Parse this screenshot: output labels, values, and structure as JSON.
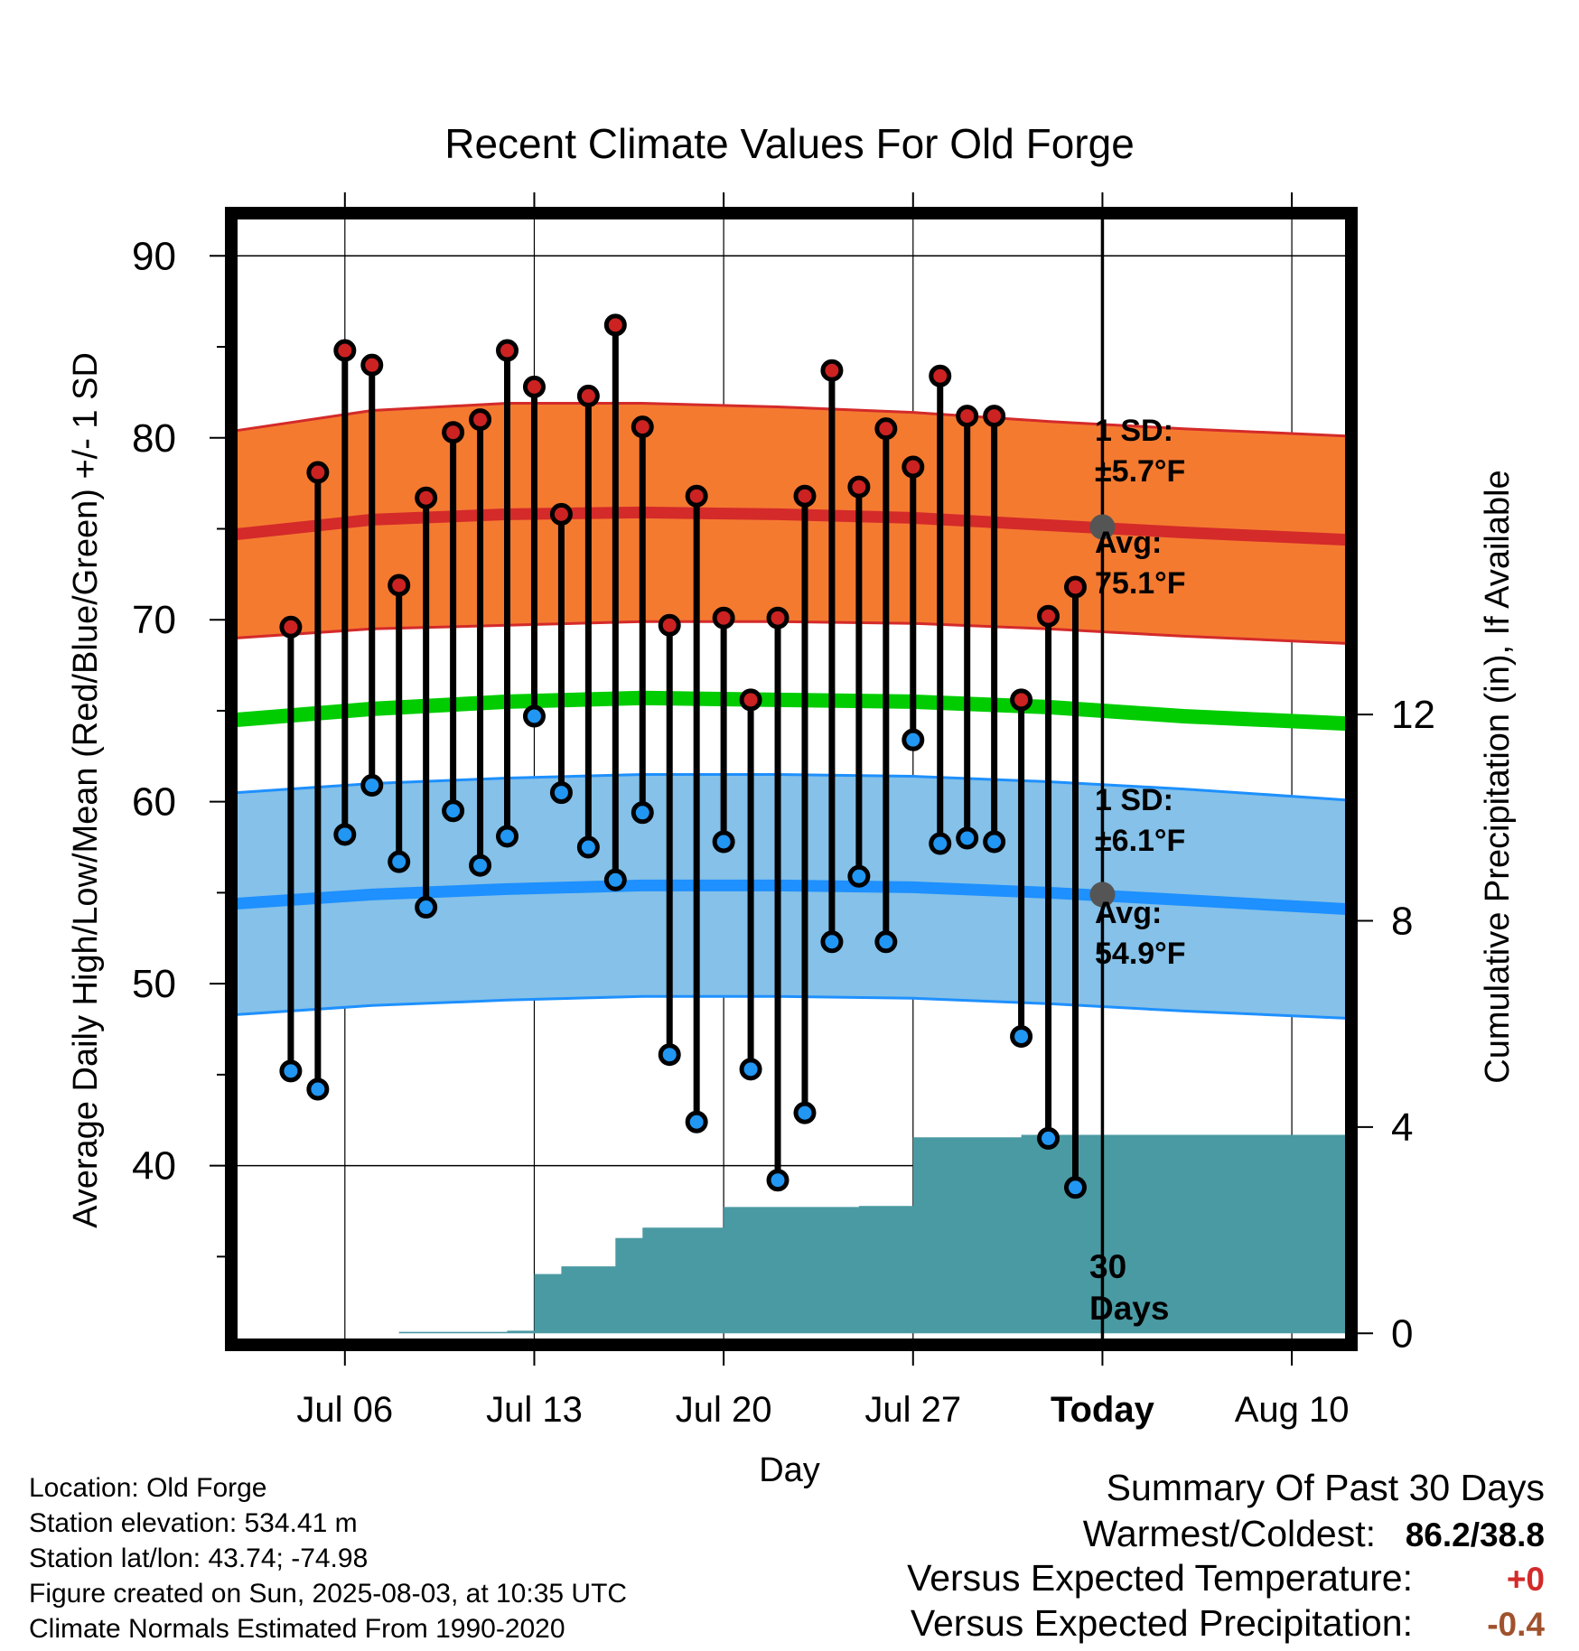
{
  "chart_data": {
    "type": "line",
    "title": "Recent Climate Values For Old Forge",
    "xlabel": "Day",
    "ylabel": "Average Daily High/Low/Mean (Red/Blue/Green) +/- 1 SD",
    "y2label": "Cumulative Precipitation (in), If Available",
    "ylim": [
      30.5,
      92
    ],
    "y2lim": [
      -0.1,
      21.6
    ],
    "x_tick_labels": [
      "Jul 06",
      "Jul 13",
      "Jul 20",
      "Jul 27",
      "Today",
      "Aug 10"
    ],
    "x_tick_dates": [
      "2025-07-06",
      "2025-07-13",
      "2025-07-20",
      "2025-07-27",
      "2025-08-03",
      "2025-08-10"
    ],
    "xlim": [
      "2025-07-02",
      "2025-08-12"
    ],
    "y_ticks": [
      40,
      50,
      60,
      70,
      80,
      90
    ],
    "y2_ticks": [
      0,
      4,
      8,
      12
    ],
    "today": "2025-08-03",
    "today_label_line1": "30",
    "today_label_line2": "Days",
    "daily": {
      "dates": [
        "2025-07-04",
        "2025-07-05",
        "2025-07-06",
        "2025-07-07",
        "2025-07-08",
        "2025-07-09",
        "2025-07-10",
        "2025-07-11",
        "2025-07-12",
        "2025-07-13",
        "2025-07-14",
        "2025-07-15",
        "2025-07-16",
        "2025-07-17",
        "2025-07-18",
        "2025-07-19",
        "2025-07-20",
        "2025-07-21",
        "2025-07-22",
        "2025-07-23",
        "2025-07-24",
        "2025-07-25",
        "2025-07-26",
        "2025-07-27",
        "2025-07-28",
        "2025-07-29",
        "2025-07-30",
        "2025-07-31",
        "2025-08-01",
        "2025-08-02"
      ],
      "highs": [
        69.6,
        78.1,
        84.8,
        84.0,
        71.9,
        76.7,
        80.3,
        81.0,
        84.8,
        82.8,
        75.8,
        82.3,
        86.2,
        80.6,
        69.7,
        76.8,
        70.1,
        65.6,
        70.1,
        76.8,
        83.7,
        77.3,
        80.5,
        78.4,
        83.4,
        81.2,
        81.2,
        65.6,
        70.2,
        71.8
      ],
      "lows": [
        45.2,
        44.2,
        58.2,
        60.9,
        56.7,
        54.2,
        59.5,
        56.5,
        58.1,
        64.7,
        60.5,
        57.5,
        55.7,
        59.4,
        46.1,
        42.4,
        57.8,
        45.3,
        39.2,
        42.9,
        52.3,
        55.9,
        52.3,
        63.4,
        57.7,
        58.0,
        57.8,
        47.1,
        41.5,
        38.8
      ]
    },
    "normals": {
      "dates": [
        "2025-07-02",
        "2025-07-07",
        "2025-07-12",
        "2025-07-17",
        "2025-07-22",
        "2025-07-27",
        "2025-08-01",
        "2025-08-06",
        "2025-08-12"
      ],
      "avg_high": [
        74.7,
        75.5,
        75.8,
        75.9,
        75.8,
        75.6,
        75.2,
        74.8,
        74.4
      ],
      "high_sd": [
        5.7,
        6.0,
        6.1,
        6.0,
        5.9,
        5.8,
        5.7,
        5.7,
        5.7
      ],
      "avg_low": [
        54.4,
        54.9,
        55.2,
        55.4,
        55.4,
        55.3,
        55.0,
        54.6,
        54.1
      ],
      "low_sd": [
        6.1,
        6.1,
        6.1,
        6.1,
        6.1,
        6.1,
        6.1,
        6.1,
        6.0
      ],
      "avg_mean": [
        64.5,
        65.1,
        65.5,
        65.7,
        65.6,
        65.5,
        65.2,
        64.7,
        64.3
      ]
    },
    "precip_cumulative": {
      "dates": [
        "2025-07-04",
        "2025-07-08",
        "2025-07-12",
        "2025-07-13",
        "2025-07-14",
        "2025-07-15",
        "2025-07-16",
        "2025-07-17",
        "2025-07-18",
        "2025-07-19",
        "2025-07-20",
        "2025-07-25",
        "2025-07-26",
        "2025-07-27",
        "2025-07-30",
        "2025-07-31",
        "2025-08-03",
        "2025-08-12"
      ],
      "values": [
        0.0,
        0.03,
        0.05,
        1.15,
        1.3,
        1.3,
        1.85,
        2.05,
        2.05,
        2.05,
        2.45,
        2.47,
        2.47,
        3.8,
        3.8,
        3.85,
        3.85,
        3.85
      ]
    },
    "annotations": {
      "high_sd_label": "1 SD:",
      "high_sd_value": "±5.7°F",
      "high_avg_label": "Avg:",
      "high_avg_value": "75.1°F",
      "low_sd_label": "1 SD:",
      "low_sd_value": "±6.1°F",
      "low_avg_label": "Avg:",
      "low_avg_value": "54.9°F"
    },
    "colors": {
      "high_band": "#f47a30",
      "high_line": "#d42a2a",
      "low_band": "#85c1e8",
      "low_line": "#1e90ff",
      "mean_line": "#00cc00",
      "precip": "#4a9aa3",
      "high_dot": "#cc2222",
      "low_dot": "#2196f3",
      "today_dot": "#555555"
    }
  },
  "info": {
    "location": "Location: Old Forge",
    "elevation": "Station elevation: 534.41 m",
    "latlon": "Station lat/lon: 43.74; -74.98",
    "created": "Figure created on Sun, 2025-08-03, at 10:35 UTC",
    "normals": "Climate Normals Estimated From 1990-2020"
  },
  "summary": {
    "title": "Summary Of Past 30 Days",
    "warm_cold_label": "Warmest/Coldest:",
    "warm_cold_value": "86.2/38.8",
    "temp_label": "Versus Expected Temperature:",
    "temp_value": "+0",
    "temp_color": "#d42a2a",
    "precip_label": "Versus Expected Precipitation:",
    "precip_value": "-0.4",
    "precip_color": "#a0522d"
  }
}
